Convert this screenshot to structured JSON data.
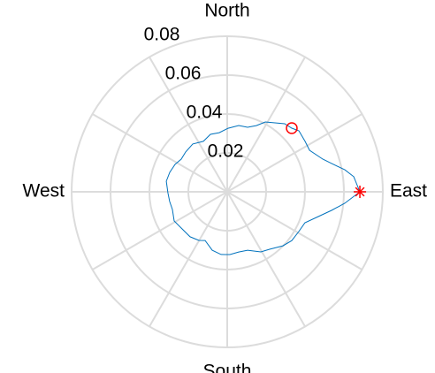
{
  "chart_data": {
    "type": "polar",
    "theta": [
      0,
      6.8,
      10.6,
      15.2,
      18.9,
      26.8,
      32.9,
      40.4,
      44.6,
      49.8,
      61.4,
      66.3,
      72.5,
      80.2,
      89.2,
      97.7,
      106.3,
      115.3,
      125.8,
      136.2,
      144.6,
      152.3,
      161.3,
      170.1,
      180.9,
      189.6,
      197.9,
      208.8,
      218.3,
      230.5,
      239.8,
      245.6,
      255.6,
      264.4,
      272.4,
      280.8,
      289.2,
      299.2,
      306.4,
      315.9,
      322.9,
      330.9,
      338.3,
      344.8,
      349.9,
      354.4,
      360
    ],
    "r": [
      0.0682,
      0.0655,
      0.0615,
      0.0556,
      0.0519,
      0.0474,
      0.0477,
      0.0484,
      0.0466,
      0.0458,
      0.0409,
      0.0372,
      0.0348,
      0.0346,
      0.0327,
      0.0307,
      0.0308,
      0.0287,
      0.0303,
      0.0296,
      0.029,
      0.0303,
      0.0312,
      0.0318,
      0.0305,
      0.03,
      0.0296,
      0.0311,
      0.0301,
      0.03,
      0.0289,
      0.0275,
      0.031,
      0.0324,
      0.0323,
      0.0315,
      0.0318,
      0.0354,
      0.0367,
      0.0399,
      0.0416,
      0.0421,
      0.043,
      0.0485,
      0.0545,
      0.0607,
      0.0682
    ],
    "color": "#0072bd",
    "markers": [
      {
        "theta": 0,
        "r": 0.0682,
        "color": "#ff0000",
        "symbol": "asterisk"
      },
      {
        "theta": 44.6,
        "r": 0.0466,
        "color": "#ff0000",
        "symbol": "circle"
      }
    ],
    "rlim": [
      0,
      0.08
    ],
    "rticks": [
      0.02,
      0.04,
      0.06,
      0.08
    ],
    "thetagrid": [
      0,
      30,
      60,
      90,
      120,
      150,
      180,
      210,
      240,
      270,
      300,
      330
    ],
    "thetaticks": [
      {
        "value": 0,
        "label": "East"
      },
      {
        "value": 90,
        "label": "North"
      },
      {
        "value": 180,
        "label": "West"
      },
      {
        "value": 270,
        "label": "South"
      }
    ],
    "grid": true
  }
}
